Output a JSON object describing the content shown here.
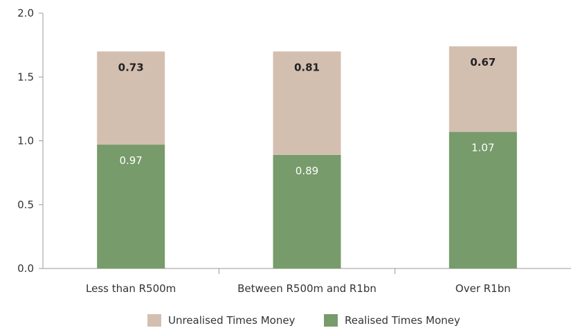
{
  "chart_data": {
    "type": "bar",
    "stacked": true,
    "title": "",
    "xlabel": "",
    "ylabel": "",
    "categories": [
      "Less than R500m",
      "Between R500m and R1bn",
      "Over R1bn"
    ],
    "series": [
      {
        "name": "Realised Times Money",
        "values": [
          0.97,
          0.89,
          1.07
        ],
        "color": "#779b6b",
        "label_color": "#ffffff"
      },
      {
        "name": "Unrealised Times Money",
        "values": [
          0.73,
          0.81,
          0.67
        ],
        "color": "#d3bfb0",
        "label_color": "#222222"
      }
    ],
    "ylim": [
      0,
      2.0
    ],
    "yticks": [
      "0.0",
      "0.5",
      "1.0",
      "1.5",
      "2.0"
    ],
    "grid": false,
    "legend_position": "bottom",
    "legend_order": [
      "Unrealised Times Money",
      "Realised Times Money"
    ]
  }
}
